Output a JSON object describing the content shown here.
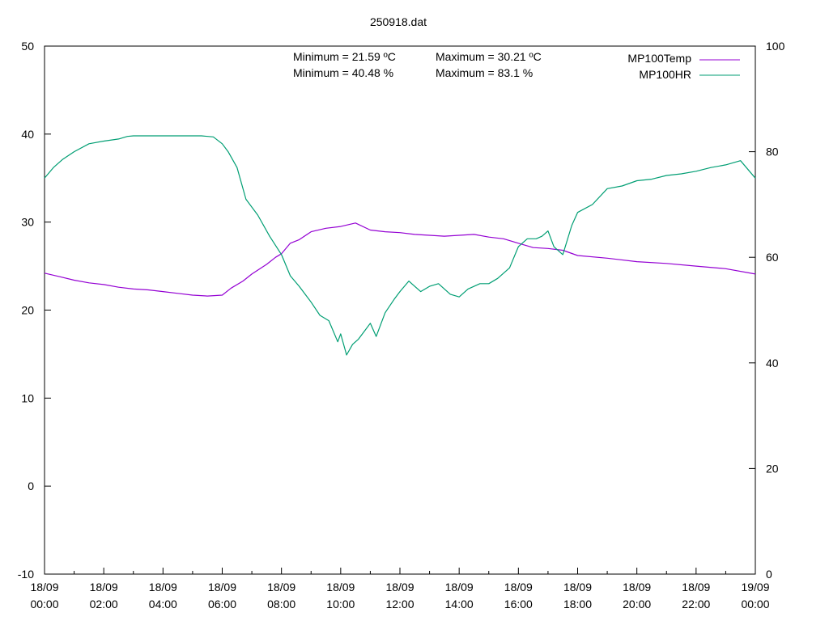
{
  "chart_data": {
    "type": "line",
    "title": "250918.dat",
    "x_ticks": [
      {
        "line1": "18/09",
        "line2": "00:00",
        "t": 0
      },
      {
        "line1": "18/09",
        "line2": "02:00",
        "t": 2
      },
      {
        "line1": "18/09",
        "line2": "04:00",
        "t": 4
      },
      {
        "line1": "18/09",
        "line2": "06:00",
        "t": 6
      },
      {
        "line1": "18/09",
        "line2": "08:00",
        "t": 8
      },
      {
        "line1": "18/09",
        "line2": "10:00",
        "t": 10
      },
      {
        "line1": "18/09",
        "line2": "12:00",
        "t": 12
      },
      {
        "line1": "18/09",
        "line2": "14:00",
        "t": 14
      },
      {
        "line1": "18/09",
        "line2": "16:00",
        "t": 16
      },
      {
        "line1": "18/09",
        "line2": "18:00",
        "t": 18
      },
      {
        "line1": "18/09",
        "line2": "20:00",
        "t": 20
      },
      {
        "line1": "18/09",
        "line2": "22:00",
        "t": 22
      },
      {
        "line1": "19/09",
        "line2": "00:00",
        "t": 24
      }
    ],
    "xlim": [
      0,
      24
    ],
    "y1lim": [
      -10,
      50
    ],
    "y1_ticks": [
      "-10",
      "0",
      "10",
      "20",
      "30",
      "40",
      "50"
    ],
    "y2lim": [
      0,
      100
    ],
    "y2_ticks": [
      "0",
      "20",
      "40",
      "60",
      "80",
      "100"
    ],
    "grid": false,
    "legend_position": "top-right",
    "annotations": [
      "Minimum = 21.59 ºC",
      "Maximum = 30.21 ºC",
      "Minimum = 40.48 %",
      "Maximum = 83.1 %"
    ],
    "series": [
      {
        "name": "MP100Temp",
        "axis": "y1",
        "color": "#9400d3",
        "x": [
          0,
          0.5,
          1,
          1.5,
          2,
          2.5,
          3,
          3.5,
          4,
          4.5,
          5,
          5.5,
          6,
          6.3,
          6.7,
          7,
          7.5,
          7.8,
          8,
          8.3,
          8.6,
          9,
          9.5,
          10,
          10.5,
          11,
          11.5,
          12,
          12.5,
          13,
          13.5,
          14,
          14.5,
          15,
          15.5,
          16,
          16.5,
          17,
          17.5,
          18,
          19,
          20,
          21,
          22,
          23,
          24
        ],
        "y": [
          24.2,
          23.8,
          23.4,
          23.1,
          22.9,
          22.6,
          22.4,
          22.3,
          22.1,
          21.9,
          21.7,
          21.6,
          21.7,
          22.5,
          23.3,
          24.1,
          25.2,
          26.0,
          26.4,
          27.6,
          28.0,
          28.9,
          29.3,
          29.5,
          29.9,
          29.1,
          28.9,
          28.8,
          28.6,
          28.5,
          28.4,
          28.5,
          28.6,
          28.3,
          28.1,
          27.6,
          27.1,
          27.0,
          26.8,
          26.2,
          25.9,
          25.5,
          25.3,
          25.0,
          24.7,
          24.1
        ]
      },
      {
        "name": "MP100HR",
        "axis": "y2",
        "color": "#009e73",
        "x": [
          0,
          0.3,
          0.6,
          1,
          1.5,
          2,
          2.5,
          2.8,
          3,
          3.5,
          4,
          4.5,
          5,
          5.3,
          5.7,
          6,
          6.2,
          6.5,
          6.8,
          7.2,
          7.6,
          8,
          8.3,
          8.6,
          9,
          9.3,
          9.6,
          9.9,
          10,
          10.2,
          10.4,
          10.6,
          10.8,
          11,
          11.2,
          11.5,
          11.8,
          12,
          12.3,
          12.7,
          13,
          13.3,
          13.7,
          14,
          14.3,
          14.7,
          15,
          15.3,
          15.7,
          16,
          16.3,
          16.6,
          16.8,
          17,
          17.2,
          17.5,
          17.8,
          18,
          18.5,
          19,
          19.5,
          20,
          20.5,
          21,
          21.5,
          22,
          22.5,
          23,
          23.5,
          24
        ],
        "y": [
          75,
          77,
          78.5,
          80,
          81.5,
          82,
          82.4,
          82.9,
          83.0,
          83.0,
          83.0,
          83.0,
          83.0,
          83.0,
          82.8,
          81.5,
          80,
          77,
          71,
          68,
          64,
          60.5,
          56.5,
          54.5,
          51.5,
          49,
          48,
          44,
          45.5,
          41.5,
          43.5,
          44.5,
          46,
          47.5,
          45,
          49.5,
          52,
          53.5,
          55.5,
          53.5,
          54.5,
          55,
          53,
          52.5,
          54,
          55,
          55,
          56,
          58,
          62,
          63.5,
          63.5,
          64,
          65,
          62,
          60.5,
          66,
          68.5,
          70,
          73,
          73.5,
          74.5,
          74.8,
          75.5,
          75.8,
          76.3,
          77,
          77.5,
          78.3,
          75
        ]
      }
    ]
  }
}
